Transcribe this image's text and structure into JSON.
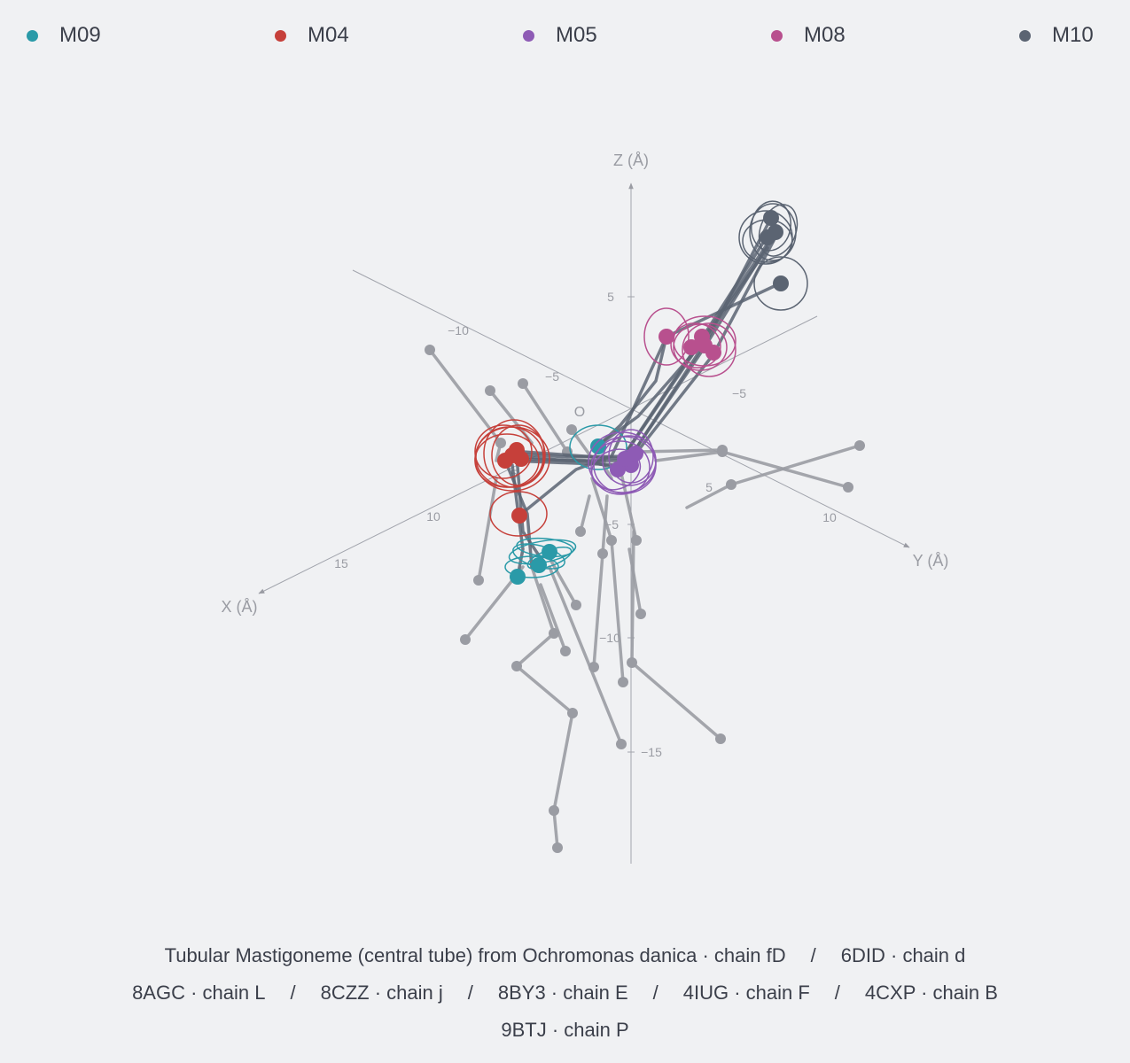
{
  "chart_data": {
    "type": "scatter",
    "projection": "3d",
    "axes": {
      "x": {
        "label": "X (Å)",
        "ticks": [
          "−10",
          "−5",
          "5",
          "10",
          "15"
        ]
      },
      "y": {
        "label": "Y (Å)",
        "ticks": [
          "−5",
          "5",
          "10"
        ]
      },
      "z": {
        "label": "Z (Å)",
        "ticks": [
          "5",
          "−5",
          "−10",
          "−15"
        ]
      },
      "origin_label": "O"
    },
    "legend_position": "top",
    "grid": false,
    "series": [
      {
        "name": "M09",
        "color": "#2a9aa8"
      },
      {
        "name": "M04",
        "color": "#c6403a"
      },
      {
        "name": "M05",
        "color": "#8e5bb5"
      },
      {
        "name": "M08",
        "color": "#b8508e"
      },
      {
        "name": "M10",
        "color": "#5b6472"
      }
    ],
    "reference_color": "#9a9ca3"
  },
  "caption": {
    "lines": [
      [
        "Tubular Mastigoneme (central tube) from Ochromonas danica · chain fD",
        "6DID · chain d"
      ],
      [
        "8AGC · chain L",
        "8CZZ · chain j",
        "8BY3 · chain E",
        "4IUG · chain F",
        "4CXP · chain B"
      ],
      [
        "9BTJ · chain P"
      ]
    ],
    "separator": "/"
  }
}
